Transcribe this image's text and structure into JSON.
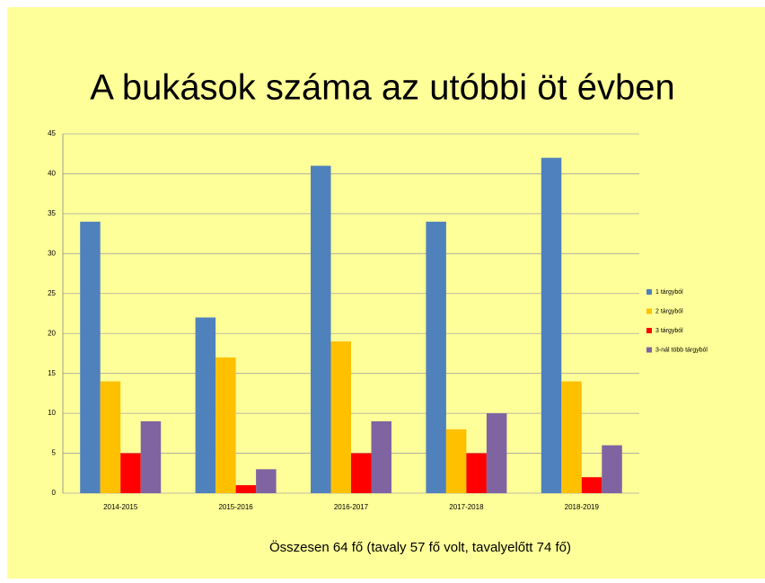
{
  "chart_data": {
    "type": "bar",
    "title": "A bukások száma az utóbbi öt évben",
    "footnote": "Összesen 64 fő (tavaly 57 fő volt, tavalyelőtt 74 fő)",
    "categories": [
      "2014-2015",
      "2015-2016",
      "2016-2017",
      "2017-2018",
      "2018-2019"
    ],
    "series": [
      {
        "name": "1 tárgyból",
        "color": "#4f81bd",
        "values": [
          34,
          22,
          41,
          34,
          42
        ]
      },
      {
        "name": "2 tárgyból",
        "color": "#ffc000",
        "values": [
          14,
          17,
          19,
          8,
          14
        ]
      },
      {
        "name": "3 tárgyból",
        "color": "#ff0000",
        "values": [
          5,
          1,
          5,
          5,
          2
        ]
      },
      {
        "name": "3-nál több tárgyból",
        "color": "#8064a2",
        "values": [
          9,
          3,
          9,
          10,
          6
        ]
      }
    ],
    "ylim": [
      0,
      45
    ],
    "yticks": [
      0,
      5,
      10,
      15,
      20,
      25,
      30,
      35,
      40,
      45
    ],
    "grid": true,
    "legend": "right"
  }
}
